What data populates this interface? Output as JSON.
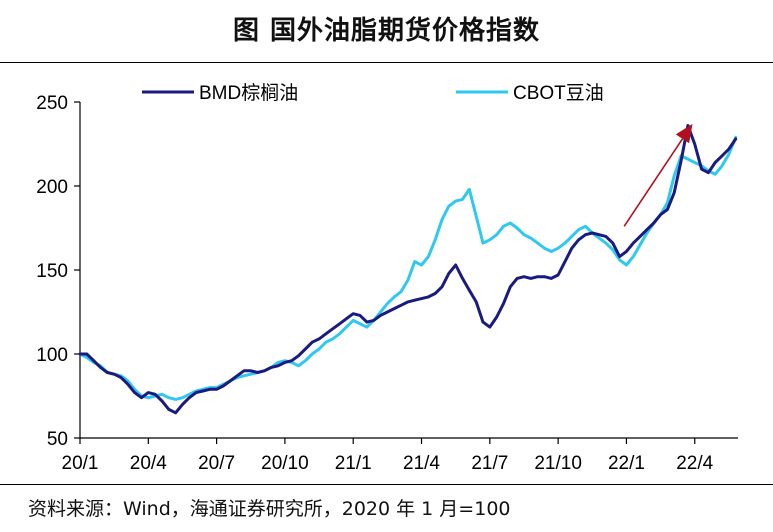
{
  "title": "图  国外油脂期货价格指数",
  "source": "资料来源：Wind，海通证券研究所，2020 年 1 月=100",
  "colors": {
    "bmd": "#1a1a80",
    "cbot": "#2ec8f0",
    "arrow": "#b01020"
  },
  "chart_data": {
    "type": "line",
    "title": "国外油脂期货价格指数",
    "xlabel": "",
    "ylabel": "",
    "ylim": [
      50,
      250
    ],
    "yticks": [
      50,
      100,
      150,
      200,
      250
    ],
    "xlim": [
      0,
      28.9
    ],
    "xticks": [
      {
        "label": "20/1",
        "x": 0
      },
      {
        "label": "20/4",
        "x": 3
      },
      {
        "label": "20/7",
        "x": 6
      },
      {
        "label": "20/10",
        "x": 9
      },
      {
        "label": "21/1",
        "x": 12
      },
      {
        "label": "21/4",
        "x": 15
      },
      {
        "label": "21/7",
        "x": 18
      },
      {
        "label": "21/10",
        "x": 21
      },
      {
        "label": "22/1",
        "x": 24
      },
      {
        "label": "22/4",
        "x": 27
      }
    ],
    "legend": "top",
    "annotations": [
      {
        "type": "arrow",
        "from": [
          23.9,
          176
        ],
        "to": [
          26.9,
          237
        ]
      }
    ],
    "series": [
      {
        "name": "BMD棕榈油",
        "points": [
          [
            0,
            100
          ],
          [
            0.3,
            100
          ],
          [
            0.6,
            96
          ],
          [
            0.9,
            92
          ],
          [
            1.2,
            89
          ],
          [
            1.5,
            88
          ],
          [
            1.8,
            86
          ],
          [
            2.1,
            82
          ],
          [
            2.4,
            77
          ],
          [
            2.7,
            74
          ],
          [
            3,
            77
          ],
          [
            3.3,
            76
          ],
          [
            3.6,
            72
          ],
          [
            3.9,
            67
          ],
          [
            4.2,
            65
          ],
          [
            4.5,
            70
          ],
          [
            4.8,
            74
          ],
          [
            5.1,
            77
          ],
          [
            5.4,
            78
          ],
          [
            5.7,
            79
          ],
          [
            6,
            79
          ],
          [
            6.3,
            81
          ],
          [
            6.6,
            84
          ],
          [
            6.9,
            87
          ],
          [
            7.2,
            90
          ],
          [
            7.5,
            90
          ],
          [
            7.8,
            89
          ],
          [
            8.1,
            90
          ],
          [
            8.4,
            92
          ],
          [
            8.7,
            93
          ],
          [
            9,
            95
          ],
          [
            9.3,
            96
          ],
          [
            9.6,
            99
          ],
          [
            9.9,
            103
          ],
          [
            10.2,
            107
          ],
          [
            10.5,
            109
          ],
          [
            10.8,
            112
          ],
          [
            11.1,
            115
          ],
          [
            11.4,
            118
          ],
          [
            11.7,
            121
          ],
          [
            12,
            124
          ],
          [
            12.3,
            123
          ],
          [
            12.6,
            119
          ],
          [
            12.9,
            120
          ],
          [
            13.2,
            123
          ],
          [
            13.5,
            125
          ],
          [
            13.8,
            127
          ],
          [
            14.1,
            129
          ],
          [
            14.4,
            131
          ],
          [
            14.7,
            132
          ],
          [
            15,
            133
          ],
          [
            15.3,
            134
          ],
          [
            15.6,
            136
          ],
          [
            15.9,
            140
          ],
          [
            16.2,
            148
          ],
          [
            16.5,
            153
          ],
          [
            16.8,
            145
          ],
          [
            17.1,
            138
          ],
          [
            17.4,
            131
          ],
          [
            17.7,
            119
          ],
          [
            18,
            116
          ],
          [
            18.3,
            122
          ],
          [
            18.6,
            130
          ],
          [
            18.9,
            140
          ],
          [
            19.2,
            145
          ],
          [
            19.5,
            146
          ],
          [
            19.8,
            145
          ],
          [
            20.1,
            146
          ],
          [
            20.4,
            146
          ],
          [
            20.7,
            145
          ],
          [
            21,
            147
          ],
          [
            21.3,
            155
          ],
          [
            21.6,
            163
          ],
          [
            21.9,
            168
          ],
          [
            22.2,
            171
          ],
          [
            22.5,
            172
          ],
          [
            22.8,
            171
          ],
          [
            23.1,
            170
          ],
          [
            23.4,
            166
          ],
          [
            23.7,
            158
          ],
          [
            24,
            161
          ],
          [
            24.3,
            166
          ],
          [
            24.6,
            170
          ],
          [
            24.9,
            174
          ],
          [
            25.2,
            178
          ],
          [
            25.5,
            183
          ],
          [
            25.8,
            186
          ],
          [
            26.1,
            196
          ],
          [
            26.4,
            215
          ],
          [
            26.7,
            236
          ],
          [
            27,
            225
          ],
          [
            27.3,
            210
          ],
          [
            27.6,
            208
          ],
          [
            27.9,
            214
          ],
          [
            28.2,
            218
          ],
          [
            28.5,
            222
          ],
          [
            28.8,
            228
          ]
        ]
      },
      {
        "name": "CBOT豆油",
        "points": [
          [
            0,
            100
          ],
          [
            0.3,
            98
          ],
          [
            0.6,
            95
          ],
          [
            0.9,
            93
          ],
          [
            1.2,
            89
          ],
          [
            1.5,
            88
          ],
          [
            1.8,
            87
          ],
          [
            2.1,
            84
          ],
          [
            2.4,
            79
          ],
          [
            2.7,
            75
          ],
          [
            3,
            74
          ],
          [
            3.3,
            75
          ],
          [
            3.6,
            76
          ],
          [
            3.9,
            74
          ],
          [
            4.2,
            73
          ],
          [
            4.5,
            74
          ],
          [
            4.8,
            76
          ],
          [
            5.1,
            78
          ],
          [
            5.4,
            79
          ],
          [
            5.7,
            80
          ],
          [
            6,
            80
          ],
          [
            6.3,
            82
          ],
          [
            6.6,
            84
          ],
          [
            6.9,
            86
          ],
          [
            7.2,
            87
          ],
          [
            7.5,
            88
          ],
          [
            7.8,
            89
          ],
          [
            8.1,
            90
          ],
          [
            8.4,
            92
          ],
          [
            8.7,
            95
          ],
          [
            9,
            96
          ],
          [
            9.3,
            95
          ],
          [
            9.6,
            93
          ],
          [
            9.9,
            96
          ],
          [
            10.2,
            100
          ],
          [
            10.5,
            103
          ],
          [
            10.8,
            107
          ],
          [
            11.1,
            109
          ],
          [
            11.4,
            112
          ],
          [
            11.7,
            116
          ],
          [
            12,
            120
          ],
          [
            12.3,
            118
          ],
          [
            12.6,
            116
          ],
          [
            12.9,
            120
          ],
          [
            13.2,
            125
          ],
          [
            13.5,
            130
          ],
          [
            13.8,
            134
          ],
          [
            14.1,
            137
          ],
          [
            14.4,
            144
          ],
          [
            14.7,
            155
          ],
          [
            15,
            153
          ],
          [
            15.3,
            158
          ],
          [
            15.6,
            168
          ],
          [
            15.9,
            180
          ],
          [
            16.2,
            188
          ],
          [
            16.5,
            191
          ],
          [
            16.8,
            192
          ],
          [
            17.1,
            198
          ],
          [
            17.4,
            182
          ],
          [
            17.7,
            166
          ],
          [
            18,
            168
          ],
          [
            18.3,
            171
          ],
          [
            18.6,
            176
          ],
          [
            18.9,
            178
          ],
          [
            19.2,
            175
          ],
          [
            19.5,
            171
          ],
          [
            19.8,
            169
          ],
          [
            20.1,
            166
          ],
          [
            20.4,
            163
          ],
          [
            20.7,
            161
          ],
          [
            21,
            163
          ],
          [
            21.3,
            166
          ],
          [
            21.6,
            170
          ],
          [
            21.9,
            174
          ],
          [
            22.2,
            176
          ],
          [
            22.5,
            172
          ],
          [
            22.8,
            169
          ],
          [
            23.1,
            166
          ],
          [
            23.4,
            162
          ],
          [
            23.7,
            156
          ],
          [
            24,
            153
          ],
          [
            24.3,
            158
          ],
          [
            24.6,
            165
          ],
          [
            24.9,
            172
          ],
          [
            25.2,
            178
          ],
          [
            25.5,
            183
          ],
          [
            25.8,
            190
          ],
          [
            26.1,
            206
          ],
          [
            26.4,
            218
          ],
          [
            26.7,
            216
          ],
          [
            27,
            214
          ],
          [
            27.3,
            212
          ],
          [
            27.6,
            209
          ],
          [
            27.9,
            207
          ],
          [
            28.2,
            212
          ],
          [
            28.5,
            219
          ],
          [
            28.8,
            229
          ]
        ]
      }
    ]
  }
}
